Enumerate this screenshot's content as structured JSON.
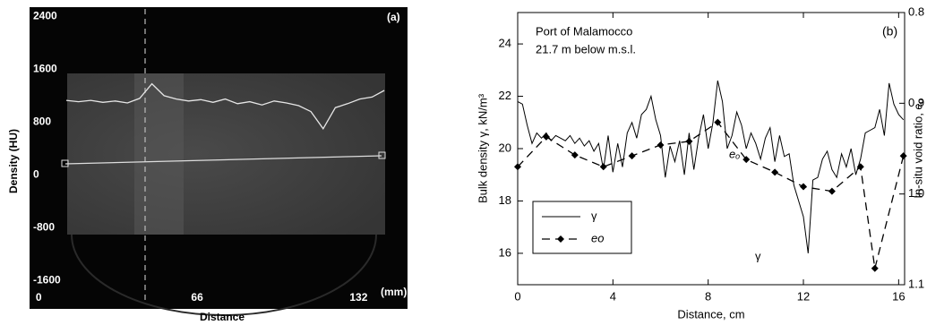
{
  "chart_data": [
    {
      "type": "image",
      "title": "(a)",
      "y_label": "Density (HU)",
      "x_label": "Distance",
      "x_unit": "(mm)",
      "xlim": [
        -2.5,
        152
      ],
      "ylim": [
        -2000,
        2500
      ],
      "xticks": [
        0,
        66,
        132
      ],
      "yticks": [
        2400,
        1600,
        800,
        0,
        -800,
        -1600
      ],
      "series": [
        {
          "color": "#e6e6e6",
          "x": [
            12.5,
            17.5,
            22.5,
            27.5,
            32.5,
            37.5,
            42.5,
            47.5,
            52.5,
            57.5,
            62.5,
            67.5,
            72.5,
            77.5,
            82.5,
            87.5,
            92.5,
            97.5,
            102.5,
            107.5,
            112.5,
            117.5,
            122.5,
            127.5,
            132.5,
            137.5,
            142.5
          ],
          "values": [
            1130,
            1110,
            1130,
            1100,
            1120,
            1090,
            1160,
            1380,
            1200,
            1150,
            1120,
            1140,
            1100,
            1150,
            1080,
            1110,
            1060,
            1120,
            1090,
            1050,
            960,
            700,
            1020,
            1080,
            1150,
            1180,
            1280
          ]
        }
      ]
    },
    {
      "type": "line",
      "title": "(b)",
      "text_lines": [
        "Port of Malamocco",
        "21.7 m below m.s.l."
      ],
      "x_label": "Distance, cm",
      "y_label": "Bulk density  γ, kN/m³",
      "y2_label": "In-situ void ratio, eₒ",
      "curve_labels": [
        "γ",
        "eₒ"
      ],
      "xlim": [
        0,
        16.25
      ],
      "xticks": [
        0,
        4,
        8,
        12,
        16
      ],
      "ylim": [
        14.8,
        25.2
      ],
      "yticks": [
        16,
        18,
        20,
        22,
        24
      ],
      "y2lim": [
        0.8,
        1.1
      ],
      "y2_inverted": true,
      "y2ticks": [
        0.8,
        0.9,
        {
          "value": 1,
          "label": "1.0"
        },
        1.1
      ],
      "series": [
        {
          "name": "γ",
          "color": "#000000",
          "dashed": false,
          "markers": false,
          "x": [
            0,
            0.2,
            0.4,
            0.6,
            0.8,
            1.0,
            1.2,
            1.4,
            1.6,
            1.8,
            2.0,
            2.2,
            2.4,
            2.6,
            2.8,
            3.0,
            3.2,
            3.4,
            3.6,
            3.8,
            4.0,
            4.2,
            4.4,
            4.6,
            4.8,
            5.0,
            5.2,
            5.4,
            5.6,
            5.8,
            6.0,
            6.2,
            6.4,
            6.6,
            6.8,
            7.0,
            7.2,
            7.4,
            7.6,
            7.8,
            8.0,
            8.2,
            8.4,
            8.6,
            8.8,
            9.0,
            9.2,
            9.4,
            9.6,
            9.8,
            10.0,
            10.2,
            10.4,
            10.6,
            10.8,
            11.0,
            11.2,
            11.4,
            11.6,
            11.8,
            12.0,
            12.2,
            12.4,
            12.6,
            12.8,
            13.0,
            13.2,
            13.4,
            13.6,
            13.8,
            14.0,
            14.2,
            14.4,
            14.6,
            14.8,
            15.0,
            15.2,
            15.4,
            15.6,
            15.8,
            16.0,
            16.2
          ],
          "values": [
            21.8,
            21.7,
            20.9,
            20.2,
            20.6,
            20.4,
            20.6,
            20.3,
            20.5,
            20.4,
            20.3,
            20.5,
            20.2,
            20.4,
            20.1,
            20.3,
            19.9,
            20.2,
            19.2,
            20.5,
            19.1,
            20.2,
            19.3,
            20.6,
            21.0,
            20.4,
            21.3,
            21.5,
            22.0,
            21.1,
            20.5,
            18.9,
            20.1,
            19.5,
            20.3,
            19.0,
            20.6,
            19.2,
            20.4,
            21.3,
            20.0,
            21.0,
            22.6,
            21.8,
            20.0,
            20.5,
            21.4,
            20.9,
            20.0,
            20.6,
            20.2,
            19.6,
            20.4,
            20.8,
            19.5,
            20.5,
            19.7,
            19.8,
            18.6,
            18.0,
            17.4,
            16.0,
            18.8,
            18.9,
            19.6,
            19.9,
            19.2,
            18.9,
            19.8,
            19.3,
            20.0,
            19.0,
            19.6,
            20.6,
            20.7,
            20.8,
            21.5,
            20.5,
            22.5,
            21.7,
            21.3,
            21.1
          ]
        },
        {
          "name": "eo",
          "color": "#000000",
          "dashed": true,
          "markers": true,
          "axis": "y2",
          "x": [
            0,
            1.2,
            2.4,
            3.6,
            4.8,
            6.0,
            7.2,
            8.4,
            9.6,
            10.8,
            12.0,
            13.2,
            14.4,
            15.0,
            16.2
          ],
          "values": [
            0.97,
            0.937,
            0.957,
            0.97,
            0.958,
            0.946,
            0.942,
            0.921,
            0.962,
            0.976,
            0.992,
            0.997,
            0.97,
            1.082,
            0.958
          ]
        }
      ]
    }
  ]
}
